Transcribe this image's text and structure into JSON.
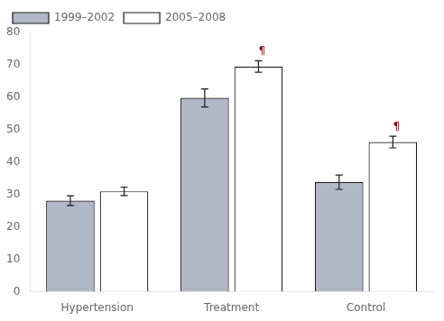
{
  "chart_data": {
    "type": "bar",
    "categories": [
      "Hypertension",
      "Treatment",
      "Control"
    ],
    "series": [
      {
        "name": "1999–2002",
        "color": "#b0b8c8",
        "values": [
          28.1,
          59.8,
          33.8
        ],
        "errors": [
          1.5,
          2.8,
          2.2
        ]
      },
      {
        "name": "2005–2008",
        "color": "#ffffff",
        "values": [
          31.0,
          69.5,
          46.2
        ],
        "errors": [
          1.3,
          1.8,
          1.8
        ]
      }
    ],
    "ylim": [
      0,
      80
    ],
    "yticks": [
      0,
      10,
      20,
      30,
      40,
      50,
      60,
      70,
      80
    ],
    "grid": false,
    "legend": "upper left",
    "annotations": [
      {
        "text": "¶",
        "category": "Treatment",
        "series": "2005–2008",
        "color": "#800000"
      },
      {
        "text": "¶",
        "category": "Control",
        "series": "2005–2008",
        "color": "#800000"
      }
    ]
  }
}
